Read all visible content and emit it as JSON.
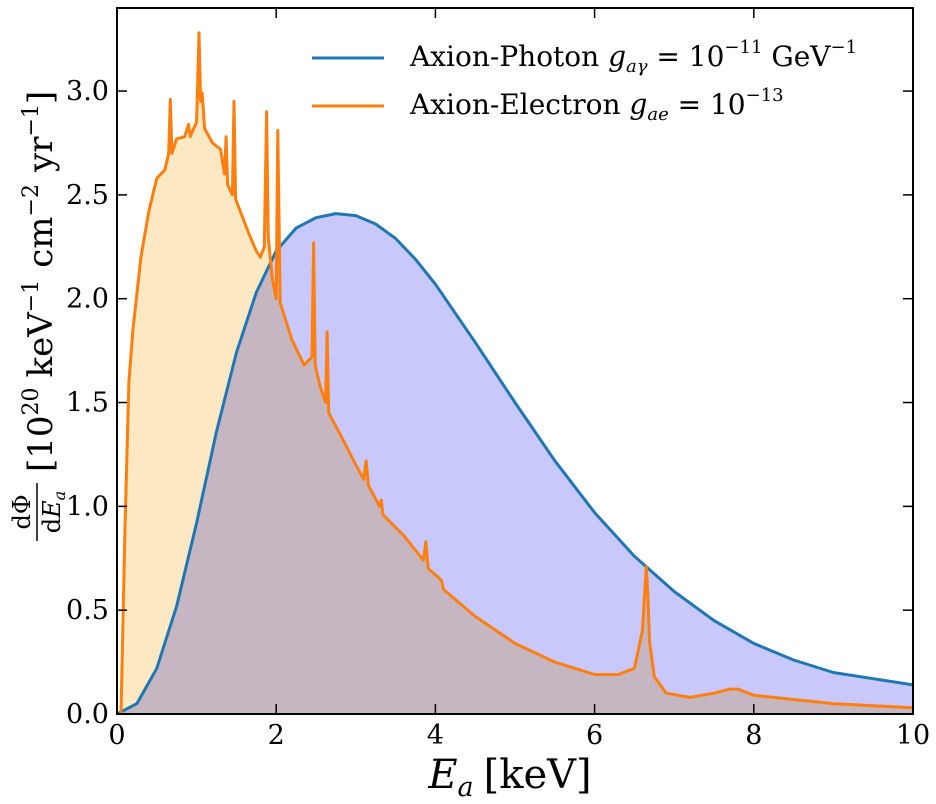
{
  "chart_data": {
    "type": "area",
    "xlabel": {
      "var": "E",
      "sub": "a",
      "unit": "[keV]"
    },
    "ylabel": {
      "frac_num": "dΦ",
      "frac_den_d": "d",
      "frac_den_var": "E",
      "frac_den_sub": "a",
      "bracket_open": "[10",
      "exp1": "20",
      "keV": "keV",
      "exp2": "−1",
      "cm": "cm",
      "exp3": "−2",
      "yr": "yr",
      "exp4": "−1",
      "bracket_close": "]"
    },
    "xlim": [
      0,
      10
    ],
    "ylim": [
      0,
      3.4
    ],
    "xticks": [
      "0",
      "2",
      "4",
      "6",
      "8",
      "10"
    ],
    "xtick_values": [
      0,
      2,
      4,
      6,
      8,
      10
    ],
    "yticks": [
      "0.0",
      "0.5",
      "1.0",
      "1.5",
      "2.0",
      "2.5",
      "3.0"
    ],
    "ytick_values": [
      0,
      0.5,
      1.0,
      1.5,
      2.0,
      2.5,
      3.0
    ],
    "grid": false,
    "legend_position": "top-right",
    "series": [
      {
        "name": "Axion-Photon",
        "legend": {
          "prefix": "Axion-Photon ",
          "var": "g",
          "sub": "aγ",
          "eq": " = 10",
          "exp": "−11",
          "unit": " GeV",
          "unit_exp": "−1"
        },
        "color": "#1f77b4",
        "fill": "#c8c8fb",
        "x": [
          0,
          0.25,
          0.5,
          0.75,
          1.0,
          1.25,
          1.5,
          1.75,
          2.0,
          2.25,
          2.5,
          2.75,
          3.0,
          3.25,
          3.5,
          3.75,
          4.0,
          4.5,
          5.0,
          5.5,
          6.0,
          6.5,
          7.0,
          7.5,
          8.0,
          8.5,
          9.0,
          9.5,
          10.0
        ],
        "y": [
          0.0,
          0.05,
          0.22,
          0.52,
          0.92,
          1.36,
          1.74,
          2.03,
          2.23,
          2.34,
          2.39,
          2.41,
          2.4,
          2.36,
          2.29,
          2.19,
          2.07,
          1.79,
          1.5,
          1.22,
          0.97,
          0.76,
          0.59,
          0.45,
          0.34,
          0.26,
          0.2,
          0.17,
          0.14
        ]
      },
      {
        "name": "Axion-Electron",
        "legend": {
          "prefix": "Axion-Electron ",
          "var": "g",
          "sub": "ae",
          "eq": " = 10",
          "exp": "−13",
          "unit": "",
          "unit_exp": ""
        },
        "color": "#ff7f0e",
        "fill": "#fde8c4",
        "x": [
          0.05,
          0.07,
          0.1,
          0.15,
          0.2,
          0.3,
          0.4,
          0.5,
          0.6,
          0.65,
          0.67,
          0.69,
          0.75,
          0.85,
          0.9,
          0.92,
          0.94,
          1.0,
          1.03,
          1.05,
          1.07,
          1.1,
          1.2,
          1.3,
          1.35,
          1.37,
          1.39,
          1.45,
          1.47,
          1.49,
          1.55,
          1.65,
          1.75,
          1.8,
          1.85,
          1.88,
          1.9,
          1.95,
          2.0,
          2.02,
          2.05,
          2.2,
          2.35,
          2.45,
          2.47,
          2.49,
          2.55,
          2.62,
          2.64,
          2.66,
          2.8,
          3.0,
          3.1,
          3.13,
          3.16,
          3.3,
          3.32,
          3.34,
          3.6,
          3.85,
          3.88,
          3.91,
          4.06,
          4.08,
          4.1,
          4.5,
          5.0,
          5.5,
          6.0,
          6.3,
          6.5,
          6.6,
          6.65,
          6.67,
          6.69,
          6.75,
          6.9,
          7.2,
          7.5,
          7.7,
          7.8,
          8.0,
          8.5,
          9.0,
          9.5,
          10.0
        ],
        "y": [
          0.0,
          0.36,
          0.9,
          1.6,
          1.85,
          2.2,
          2.42,
          2.58,
          2.62,
          2.7,
          2.96,
          2.7,
          2.77,
          2.78,
          2.84,
          2.78,
          2.8,
          2.85,
          3.28,
          2.95,
          2.99,
          2.82,
          2.75,
          2.72,
          2.6,
          2.78,
          2.55,
          2.5,
          2.95,
          2.48,
          2.42,
          2.32,
          2.23,
          2.2,
          2.25,
          2.9,
          2.3,
          2.1,
          2.0,
          2.81,
          1.98,
          1.8,
          1.68,
          1.72,
          2.27,
          1.68,
          1.58,
          1.5,
          1.84,
          1.45,
          1.35,
          1.2,
          1.13,
          1.22,
          1.1,
          1.0,
          1.03,
          0.96,
          0.86,
          0.74,
          0.83,
          0.7,
          0.65,
          0.64,
          0.6,
          0.47,
          0.34,
          0.25,
          0.19,
          0.19,
          0.22,
          0.4,
          0.71,
          0.57,
          0.35,
          0.18,
          0.1,
          0.08,
          0.1,
          0.12,
          0.12,
          0.09,
          0.07,
          0.05,
          0.04,
          0.03
        ]
      }
    ]
  }
}
